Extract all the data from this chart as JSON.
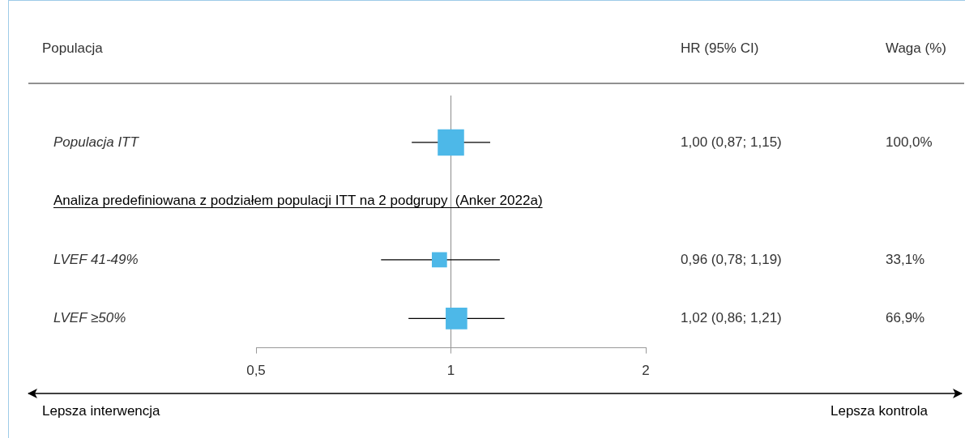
{
  "chart_data": {
    "type": "bubble",
    "orientation": "horizontal",
    "log": "x",
    "marker": "square",
    "ylabel": "Populacja",
    "categories": [
      "Populacja ITT",
      "Analiza predefiniowana z podziałem populacji ITT na 2 podgrupy  (Anker 2022a)",
      "LVEF 41-49%",
      "LVEF ≥50%"
    ],
    "values": [
      1.0,
      null,
      0.96,
      1.02
    ],
    "errors": [
      [
        0.87,
        1.15
      ],
      null,
      [
        0.78,
        1.19
      ],
      [
        0.86,
        1.21
      ]
    ],
    "sizes": [
      1,
      null,
      0.331,
      0.669
    ],
    "color": "#4db8e8",
    "value_labels": [
      "1,00 (0,87; 1,15)",
      null,
      "0,96 (0,78; 1,19)",
      "1,02 (0,86; 1,21)"
    ],
    "xlim": [
      0.5,
      2
    ],
    "xticks": [
      {
        "value": 0.5,
        "label": "0,5"
      },
      1,
      2
    ],
    "ref_lines": [
      {
        "axis": "x",
        "value": 1,
        "color": "#999999"
      }
    ],
    "annotations": [
      "HR (95% CI)",
      "Waga (%)",
      "Lepsza interwencja",
      "Lepsza kontrola",
      "100,0%",
      "33,1%",
      "66,9%"
    ]
  }
}
